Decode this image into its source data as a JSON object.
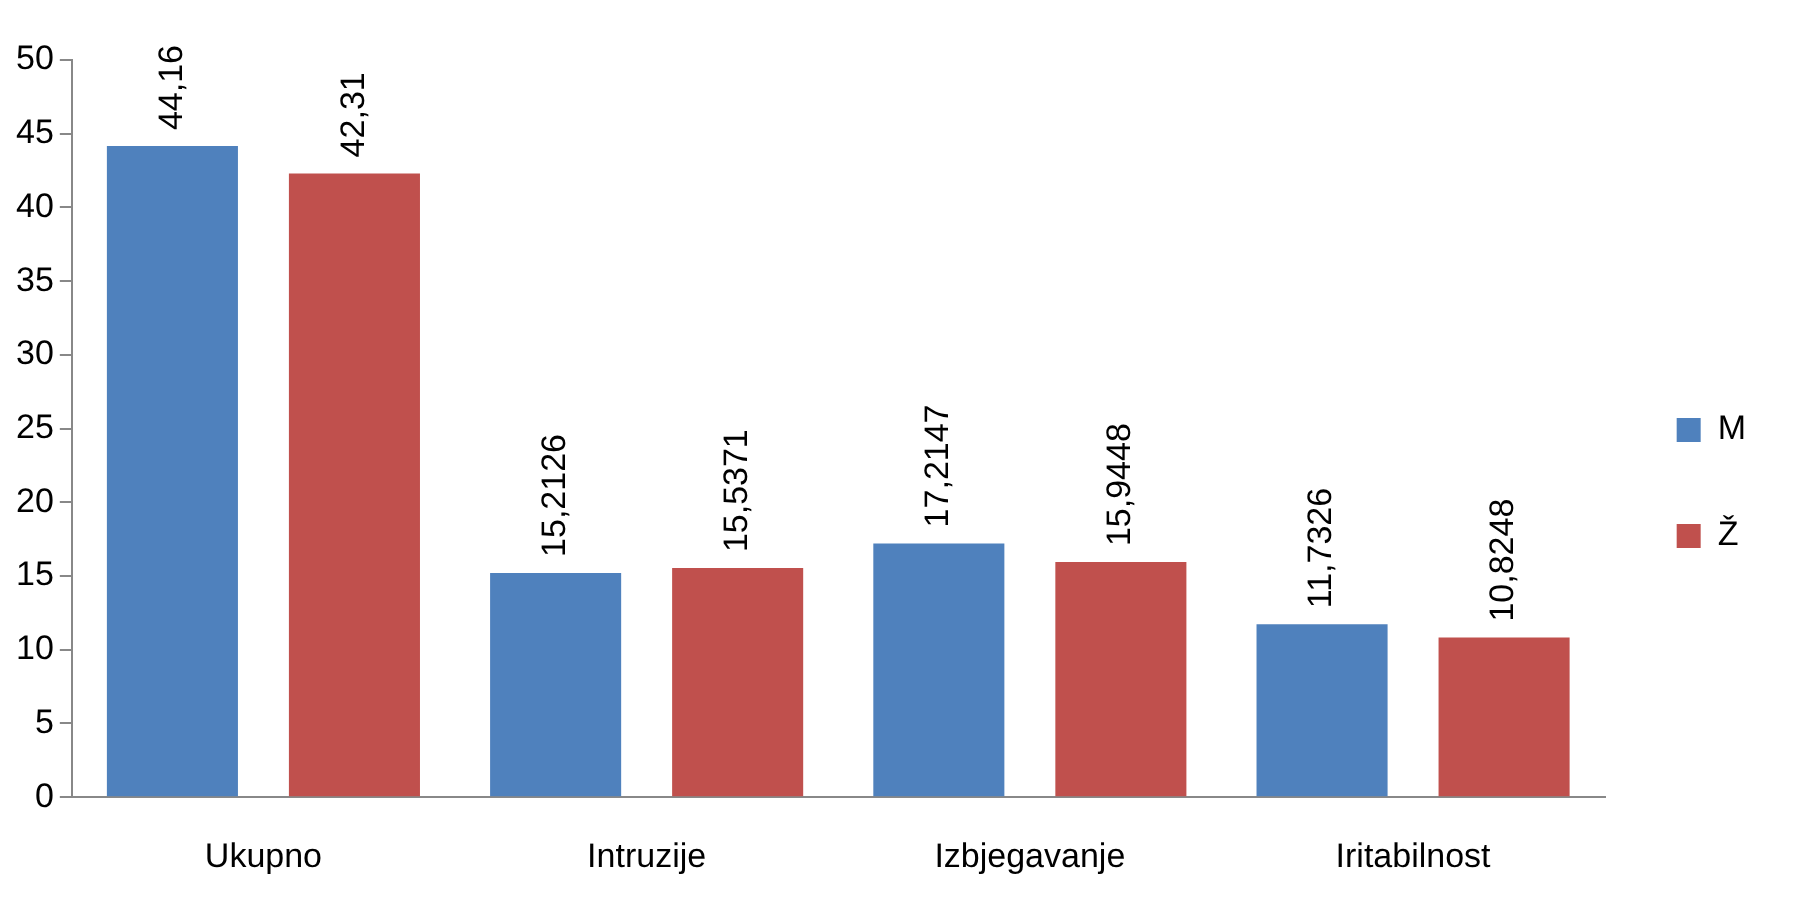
{
  "chart_data": {
    "type": "bar",
    "categories": [
      "Ukupno",
      "Intruzije",
      "Izbjegavanje",
      "Iritabilnost"
    ],
    "series": [
      {
        "name": "M",
        "color": "#4f81bd",
        "values": [
          44.16,
          15.2126,
          17.2147,
          11.7326
        ],
        "value_labels": [
          "44,16",
          "15,2126",
          "17,2147",
          "11,7326"
        ]
      },
      {
        "name": "Ž",
        "color": "#c0504d",
        "values": [
          42.31,
          15.5371,
          15.9448,
          10.8248
        ],
        "value_labels": [
          "42,31",
          "15,5371",
          "15,9448",
          "10,8248"
        ]
      }
    ],
    "ylim": [
      0,
      50
    ],
    "yticks": [
      0,
      5,
      10,
      15,
      20,
      25,
      30,
      35,
      40,
      45,
      50
    ],
    "grid": false,
    "legend": "right"
  }
}
